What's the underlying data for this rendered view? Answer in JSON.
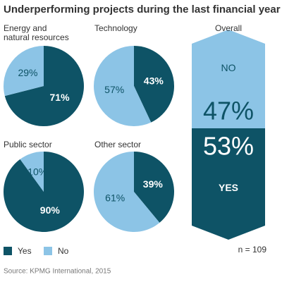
{
  "title": "Underperforming projects during the last financial year",
  "source": "Source: KPMG International, 2015",
  "note": "n = 109",
  "legend": [
    {
      "name": "Yes",
      "color": "#0e5366"
    },
    {
      "name": "No",
      "color": "#8cc4e6"
    }
  ],
  "chart_data": [
    {
      "type": "pie",
      "title": "Energy and\nnatural resources",
      "categories": [
        "Yes",
        "No"
      ],
      "values": [
        71,
        29
      ],
      "value_labels": [
        "71%",
        "29%"
      ],
      "colors": [
        "#0e5366",
        "#8cc4e6"
      ]
    },
    {
      "type": "pie",
      "title": "Technology",
      "categories": [
        "Yes",
        "No"
      ],
      "values": [
        43,
        57
      ],
      "value_labels": [
        "43%",
        "57%"
      ],
      "colors": [
        "#0e5366",
        "#8cc4e6"
      ]
    },
    {
      "type": "pie",
      "title": "Public sector",
      "categories": [
        "Yes",
        "No"
      ],
      "values": [
        90,
        10
      ],
      "value_labels": [
        "90%",
        "10%"
      ],
      "colors": [
        "#0e5366",
        "#8cc4e6"
      ]
    },
    {
      "type": "pie",
      "title": "Other sector",
      "categories": [
        "Yes",
        "No"
      ],
      "values": [
        39,
        61
      ],
      "value_labels": [
        "39%",
        "61%"
      ],
      "colors": [
        "#0e5366",
        "#8cc4e6"
      ]
    },
    {
      "type": "stack",
      "title": "Overall",
      "categories": [
        "YES",
        "NO"
      ],
      "values": [
        53,
        47
      ],
      "value_labels": [
        "53%",
        "47%"
      ],
      "colors": [
        "#0e5366",
        "#8cc4e6"
      ]
    }
  ]
}
